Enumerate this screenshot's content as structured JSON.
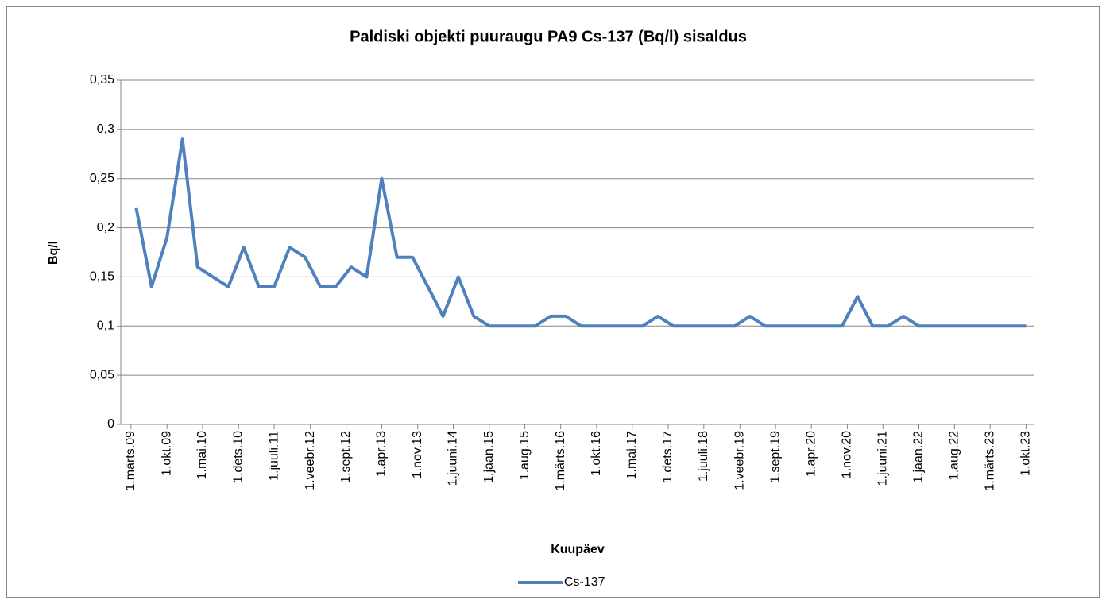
{
  "chart_data": {
    "type": "line",
    "title": "Paldiski objekti puuraugu PA9 Cs-137 (Bq/l) sisaldus",
    "x_label": "Kuupäev",
    "y_label": "Bq/l",
    "x": [
      "2009-04-01",
      "2009-07-01",
      "2009-10-01",
      "2010-01-01",
      "2010-04-01",
      "2010-07-01",
      "2010-10-01",
      "2011-01-01",
      "2011-04-01",
      "2011-07-01",
      "2011-10-01",
      "2012-01-01",
      "2012-04-01",
      "2012-07-01",
      "2012-10-01",
      "2013-01-01",
      "2013-04-01",
      "2013-07-01",
      "2013-10-01",
      "2014-01-01",
      "2014-04-01",
      "2014-07-01",
      "2014-10-01",
      "2015-01-01",
      "2015-04-01",
      "2015-07-01",
      "2015-10-01",
      "2016-01-01",
      "2016-04-01",
      "2016-07-01",
      "2016-10-01",
      "2017-01-01",
      "2017-04-01",
      "2017-07-01",
      "2017-10-01",
      "2018-01-01",
      "2018-04-01",
      "2018-07-01",
      "2018-10-01",
      "2019-01-01",
      "2019-04-01",
      "2019-07-01",
      "2019-10-01",
      "2020-01-01",
      "2020-04-01",
      "2020-07-01",
      "2020-10-01",
      "2021-01-01",
      "2021-04-01",
      "2021-07-01",
      "2021-10-01",
      "2022-01-01",
      "2022-04-01",
      "2022-07-01",
      "2022-10-01",
      "2023-01-01",
      "2023-04-01",
      "2023-07-01",
      "2023-10-01"
    ],
    "series": [
      {
        "name": "Cs-137",
        "color": "#4f81bd",
        "values": [
          0.22,
          0.14,
          0.19,
          0.29,
          0.16,
          0.15,
          0.14,
          0.18,
          0.14,
          0.14,
          0.18,
          0.17,
          0.14,
          0.14,
          0.16,
          0.15,
          0.25,
          0.17,
          0.17,
          0.14,
          0.11,
          0.15,
          0.11,
          0.1,
          0.1,
          0.1,
          0.1,
          0.11,
          0.11,
          0.1,
          0.1,
          0.1,
          0.1,
          0.1,
          0.11,
          0.1,
          0.1,
          0.1,
          0.1,
          0.1,
          0.11,
          0.1,
          0.1,
          0.1,
          0.1,
          0.1,
          0.1,
          0.13,
          0.1,
          0.1,
          0.11,
          0.1,
          0.1,
          0.1,
          0.1,
          0.1,
          0.1,
          0.1,
          0.1
        ]
      }
    ],
    "xlim": [
      "2008-12-30",
      "2023-11-20"
    ],
    "xticks": [
      {
        "value": "2009-03-01",
        "label": "1.märts.09"
      },
      {
        "value": "2009-10-01",
        "label": "1.okt.09"
      },
      {
        "value": "2010-05-01",
        "label": "1.mai.10"
      },
      {
        "value": "2010-12-01",
        "label": "1.dets.10"
      },
      {
        "value": "2011-07-01",
        "label": "1.juuli.11"
      },
      {
        "value": "2012-02-01",
        "label": "1.veebr.12"
      },
      {
        "value": "2012-09-01",
        "label": "1.sept.12"
      },
      {
        "value": "2013-04-01",
        "label": "1.apr.13"
      },
      {
        "value": "2013-11-01",
        "label": "1.nov.13"
      },
      {
        "value": "2014-06-01",
        "label": "1.juuni.14"
      },
      {
        "value": "2015-01-01",
        "label": "1.jaan.15"
      },
      {
        "value": "2015-08-01",
        "label": "1.aug.15"
      },
      {
        "value": "2016-03-01",
        "label": "1.märts.16"
      },
      {
        "value": "2016-10-01",
        "label": "1.okt.16"
      },
      {
        "value": "2017-05-01",
        "label": "1.mai.17"
      },
      {
        "value": "2017-12-01",
        "label": "1.dets.17"
      },
      {
        "value": "2018-07-01",
        "label": "1.juuli.18"
      },
      {
        "value": "2019-02-01",
        "label": "1.veebr.19"
      },
      {
        "value": "2019-09-01",
        "label": "1.sept.19"
      },
      {
        "value": "2020-04-01",
        "label": "1.apr.20"
      },
      {
        "value": "2020-11-01",
        "label": "1.nov.20"
      },
      {
        "value": "2021-06-01",
        "label": "1.juuni.21"
      },
      {
        "value": "2022-01-01",
        "label": "1.jaan.22"
      },
      {
        "value": "2022-08-01",
        "label": "1.aug.22"
      },
      {
        "value": "2023-03-01",
        "label": "1.märts.23"
      },
      {
        "value": "2023-10-01",
        "label": "1.okt.23"
      }
    ],
    "ylim": [
      0,
      0.35
    ],
    "yticks": [
      0,
      {
        "value": 0.05,
        "label": "0,05"
      },
      {
        "value": 0.1,
        "label": "0,1"
      },
      {
        "value": 0.15,
        "label": "0,15"
      },
      {
        "value": 0.2,
        "label": "0,2"
      },
      {
        "value": 0.25,
        "label": "0,25"
      },
      {
        "value": 0.3,
        "label": "0,3"
      },
      {
        "value": 0.35,
        "label": "0,35"
      }
    ],
    "grid": true,
    "legend": "bottom"
  }
}
